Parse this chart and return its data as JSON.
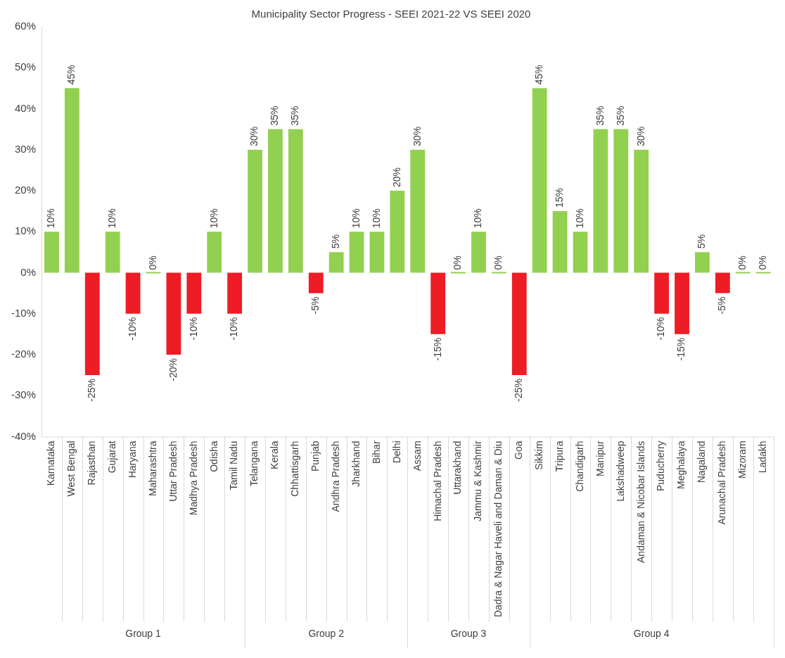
{
  "chart_data": {
    "type": "bar",
    "title": "Municipality Sector Progress - SEEI 2021-22 VS SEEI 2020",
    "categories": [
      "Karnataka",
      "West Bengal",
      "Rajasthan",
      "Gujarat",
      "Haryana",
      "Maharashtra",
      "Uttar Pradesh",
      "Madhya Pradesh",
      "Odisha",
      "Tamil Nadu",
      "Telangana",
      "Kerala",
      "Chhattisgarh",
      "Punjab",
      "Andhra Pradesh",
      "Jharkhand",
      "Bihar",
      "Delhi",
      "Assam",
      "Himachal Pradesh",
      "Uttarakhand",
      "Jammu & Kashmir",
      "Dadra & Nagar Haveli and Daman & Diu",
      "Goa",
      "Sikkim",
      "Tripura",
      "Chandigarh",
      "Manipur",
      "Lakshadweep",
      "Andaman & Nicobar Islands",
      "Puducherry",
      "Meghalaya",
      "Nagaland",
      "Arunachal Pradesh",
      "Mizoram",
      "Ladakh"
    ],
    "values": [
      10,
      45,
      -25,
      10,
      -10,
      0,
      -20,
      -10,
      10,
      -10,
      30,
      35,
      35,
      -5,
      5,
      10,
      10,
      20,
      30,
      -15,
      0,
      10,
      0,
      -25,
      45,
      15,
      10,
      35,
      35,
      30,
      -10,
      -15,
      5,
      -5,
      0,
      0
    ],
    "value_labels": [
      "10%",
      "45%",
      "-25%",
      "10%",
      "-10%",
      "0%",
      "-20%",
      "-10%",
      "10%",
      "-10%",
      "30%",
      "35%",
      "35%",
      "-5%",
      "5%",
      "10%",
      "10%",
      "20%",
      "30%",
      "-15%",
      "0%",
      "10%",
      "0%",
      "-25%",
      "45%",
      "15%",
      "10%",
      "35%",
      "35%",
      "30%",
      "-10%",
      "-15%",
      "5%",
      "-5%",
      "0%",
      "0%"
    ],
    "colors": [
      "#92d050",
      "#92d050",
      "#ee1c25",
      "#92d050",
      "#ee1c25",
      "#92d050",
      "#ee1c25",
      "#ee1c25",
      "#92d050",
      "#ee1c25",
      "#92d050",
      "#92d050",
      "#92d050",
      "#ee1c25",
      "#92d050",
      "#92d050",
      "#92d050",
      "#92d050",
      "#92d050",
      "#ee1c25",
      "#92d050",
      "#92d050",
      "#92d050",
      "#ee1c25",
      "#92d050",
      "#92d050",
      "#92d050",
      "#92d050",
      "#92d050",
      "#92d050",
      "#ee1c25",
      "#ee1c25",
      "#92d050",
      "#ee1c25",
      "#92d050",
      "#92d050"
    ],
    "ylim": [
      -40,
      60
    ],
    "yticks": [
      {
        "value": -40,
        "label": "-40%"
      },
      {
        "value": -30,
        "label": "-30%"
      },
      {
        "value": -20,
        "label": "-20%"
      },
      {
        "value": -10,
        "label": "-10%"
      },
      {
        "value": 0,
        "label": "0%"
      },
      {
        "value": 10,
        "label": "10%"
      },
      {
        "value": 20,
        "label": "20%"
      },
      {
        "value": 30,
        "label": "30%"
      },
      {
        "value": 40,
        "label": "40%"
      },
      {
        "value": 50,
        "label": "50%"
      },
      {
        "value": 60,
        "label": "60%"
      }
    ],
    "annotations": [
      "Group 1",
      "Group 2",
      "Group 3",
      "Group 4"
    ],
    "grid": false,
    "legend": false
  }
}
